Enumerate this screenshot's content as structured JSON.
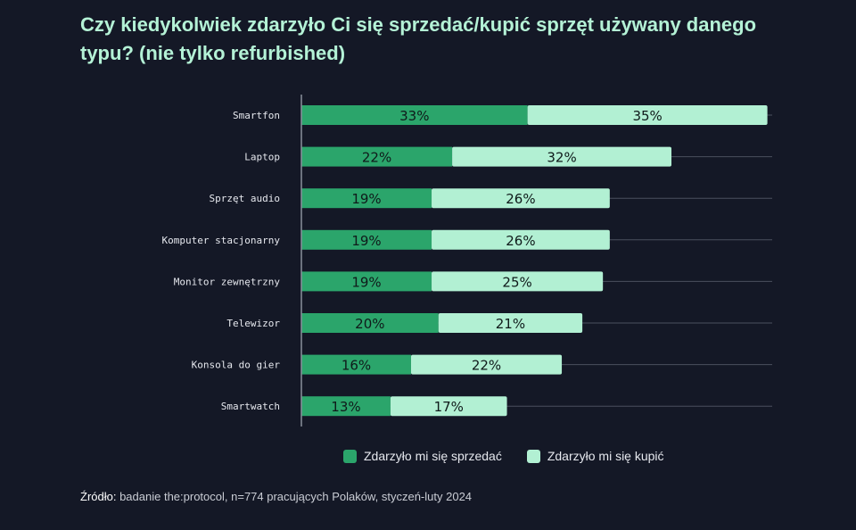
{
  "title": "Czy kiedykolwiek zdarzyło Ci się sprzedać/kupić sprzęt używany danego typu? (nie tylko refurbished)",
  "colors": {
    "background": "#141826",
    "sold": "#2ba56b",
    "bought": "#b2f0d3",
    "grid": "#4a4f5e"
  },
  "chart_data": {
    "type": "bar",
    "orientation": "horizontal",
    "stacked": true,
    "title": "Czy kiedykolwiek zdarzyło Ci się sprzedać/kupić sprzęt używany danego typu? (nie tylko refurbished)",
    "categories": [
      "Smartfon",
      "Laptop",
      "Sprzęt audio",
      "Komputer stacjonarny",
      "Monitor zewnętrzny",
      "Telewizor",
      "Konsola do gier",
      "Smartwatch"
    ],
    "series": [
      {
        "name": "Zdarzyło mi się sprzedać",
        "values": [
          33,
          22,
          19,
          19,
          19,
          20,
          16,
          13
        ]
      },
      {
        "name": "Zdarzyło mi się kupić",
        "values": [
          35,
          32,
          26,
          26,
          25,
          21,
          22,
          17
        ]
      }
    ],
    "value_suffix": "%",
    "xlim": [
      0,
      68.7
    ],
    "legend_position": "bottom"
  },
  "legend": {
    "sold": "Zdarzyło mi się sprzedać",
    "bought": "Zdarzyło mi się kupić"
  },
  "source": {
    "label": "Źródło:",
    "text": " badanie the:protocol, n=774 pracujących Polaków, styczeń-luty 2024"
  }
}
